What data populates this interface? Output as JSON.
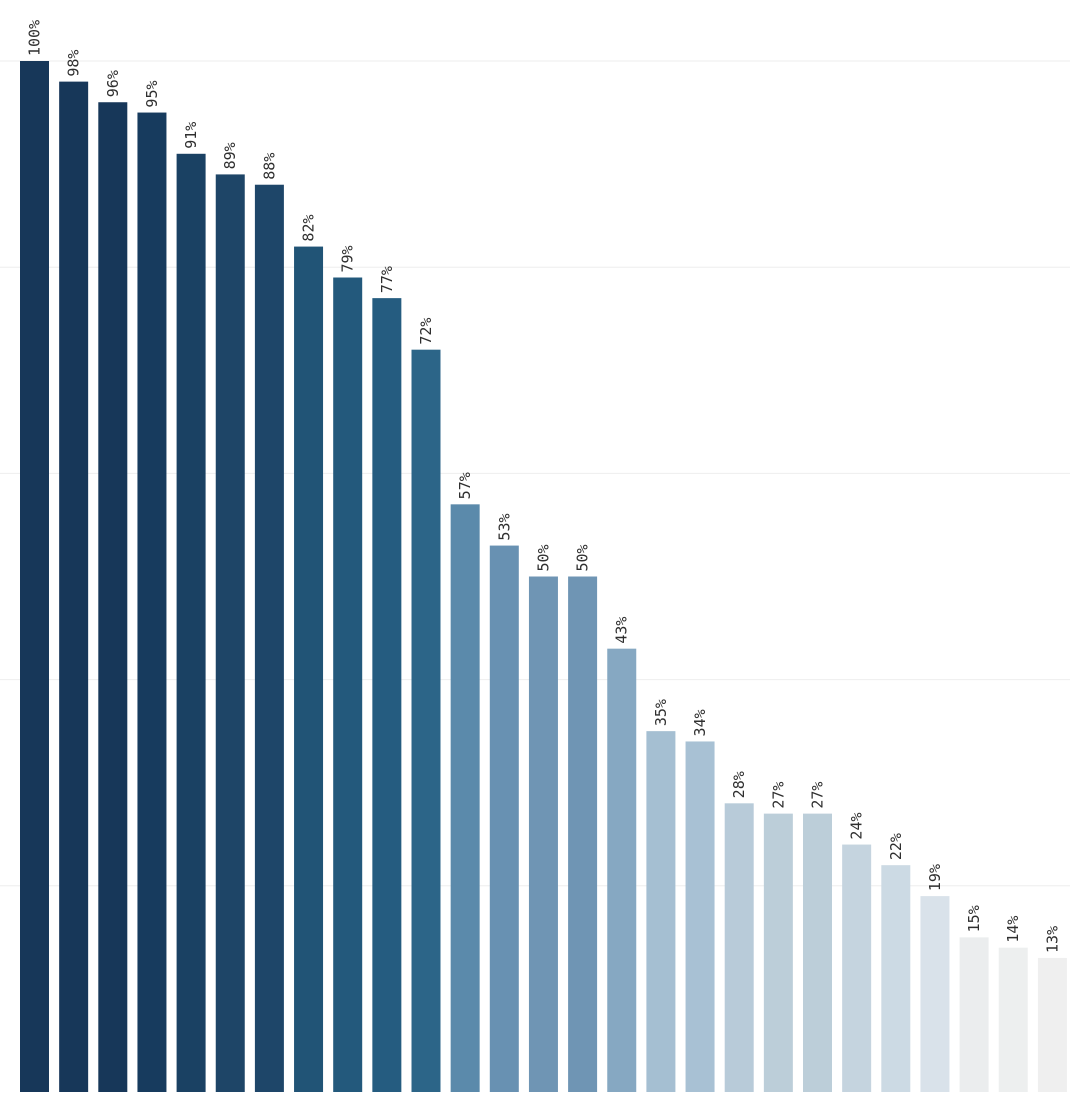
{
  "chart_data": {
    "type": "bar",
    "title": "",
    "xlabel": "",
    "ylabel": "",
    "ylim": [
      0,
      100
    ],
    "grid": true,
    "legend": "none",
    "values": [
      100,
      98,
      96,
      95,
      91,
      89,
      88,
      82,
      79,
      77,
      72,
      57,
      53,
      50,
      50,
      43,
      35,
      34,
      28,
      27,
      27,
      24,
      22,
      19,
      15,
      14,
      13
    ],
    "labels": [
      "100%",
      "98%",
      "96%",
      "95%",
      "91%",
      "89%",
      "88%",
      "82%",
      "79%",
      "77%",
      "72%",
      "57%",
      "53%",
      "50%",
      "50%",
      "43%",
      "35%",
      "34%",
      "28%",
      "27%",
      "27%",
      "24%",
      "22%",
      "19%",
      "15%",
      "14%",
      "13%"
    ],
    "colors": [
      "#173759",
      "#173759",
      "#173759",
      "#173b5e",
      "#1a4163",
      "#1e4567",
      "#1e4669",
      "#215476",
      "#23597c",
      "#255c80",
      "#2c6588",
      "#5b8aab",
      "#6891b2",
      "#6f95b4",
      "#6f95b4",
      "#86a8c2",
      "#a5bfd2",
      "#a8c1d4",
      "#b8cbd9",
      "#bcced9",
      "#bcced9",
      "#c5d4df",
      "#ccdae4",
      "#d9e2ea",
      "#ebedee",
      "#edefef",
      "#efefef"
    ]
  }
}
